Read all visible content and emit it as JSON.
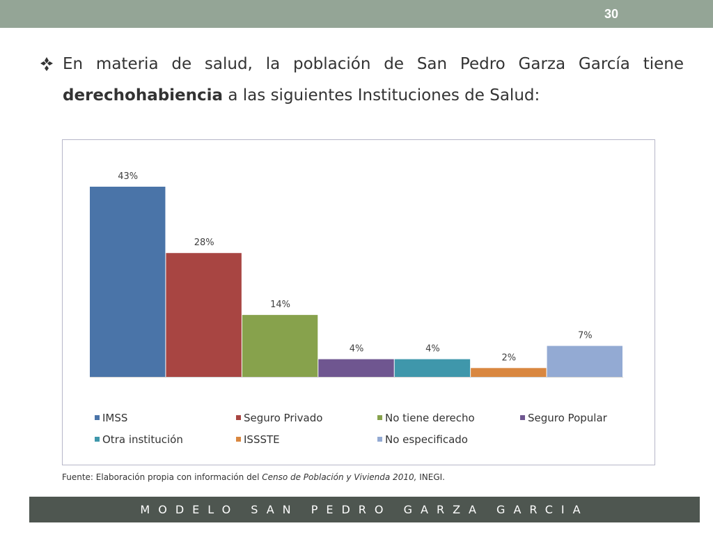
{
  "slide": {
    "number": "30",
    "intro_part1": "En materia de salud, la población de San Pedro Garza García tiene",
    "intro_bold": "derechohabiencia",
    "intro_part2": " a las siguientes Instituciones de Salud:",
    "source_prefix": "Fuente: Elaboración propia con información del ",
    "source_title": "Censo de Población y Vivienda  2010,",
    "source_suffix": " INEGI.",
    "footer": "MODELO SAN PEDRO GARZA GARCIA",
    "colors": {
      "top_bar": "#94a596",
      "footer_bar": "#4e5650"
    }
  },
  "chart_data": {
    "type": "bar",
    "categories": [
      "IMSS",
      "Seguro Privado",
      "No tiene derecho",
      "Seguro Popular",
      "Otra institución",
      "ISSSTE",
      "No especificado"
    ],
    "values": [
      43,
      28,
      14,
      4,
      4,
      2,
      7
    ],
    "labels": [
      "43%",
      "28%",
      "14%",
      "4%",
      "4%",
      "2%",
      "7%"
    ],
    "colors": [
      "#4a74a8",
      "#a84542",
      "#87a24c",
      "#6f5690",
      "#3f97ab",
      "#d98740",
      "#93aad3"
    ],
    "ylim": [
      0,
      43
    ],
    "legend_position": "bottom",
    "grid": false,
    "title": "",
    "xlabel": "",
    "ylabel": ""
  }
}
